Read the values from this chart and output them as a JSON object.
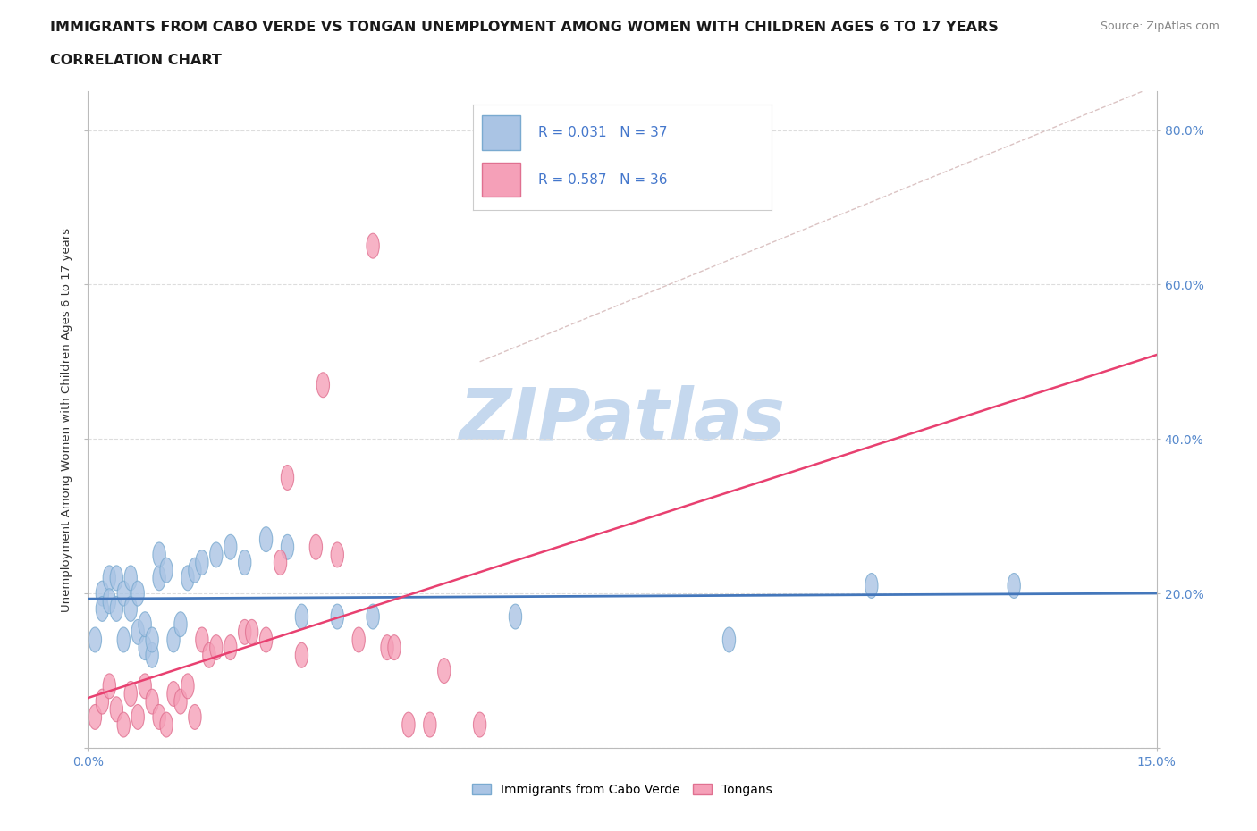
{
  "title_line1": "IMMIGRANTS FROM CABO VERDE VS TONGAN UNEMPLOYMENT AMONG WOMEN WITH CHILDREN AGES 6 TO 17 YEARS",
  "title_line2": "CORRELATION CHART",
  "source_text": "Source: ZipAtlas.com",
  "ylabel": "Unemployment Among Women with Children Ages 6 to 17 years",
  "xlim": [
    0.0,
    0.15
  ],
  "ylim": [
    0.0,
    0.85
  ],
  "x_ticks": [
    0.0,
    0.15
  ],
  "x_tick_labels": [
    "0.0%",
    "15.0%"
  ],
  "y_ticks": [
    0.0,
    0.2,
    0.4,
    0.6,
    0.8
  ],
  "y_tick_labels": [
    "",
    "20.0%",
    "40.0%",
    "60.0%",
    "80.0%"
  ],
  "cabo_verde_R": 0.031,
  "cabo_verde_N": 37,
  "tongan_R": 0.587,
  "tongan_N": 36,
  "cabo_verde_color": "#aac4e4",
  "tongan_color": "#f5a0b8",
  "cabo_verde_edge_color": "#7aaad0",
  "tongan_edge_color": "#e07090",
  "cabo_verde_line_color": "#4477bb",
  "tongan_line_color": "#e84070",
  "grid_color": "#dddddd",
  "background_color": "#ffffff",
  "watermark_color": "#c5d8ee",
  "watermark_text": "ZIPatlas",
  "cabo_verde_x": [
    0.001,
    0.002,
    0.002,
    0.003,
    0.003,
    0.004,
    0.004,
    0.005,
    0.005,
    0.006,
    0.006,
    0.007,
    0.007,
    0.008,
    0.008,
    0.009,
    0.009,
    0.01,
    0.01,
    0.011,
    0.012,
    0.013,
    0.014,
    0.015,
    0.016,
    0.018,
    0.02,
    0.022,
    0.025,
    0.028,
    0.03,
    0.035,
    0.04,
    0.06,
    0.09,
    0.11,
    0.13
  ],
  "cabo_verde_y": [
    0.14,
    0.2,
    0.18,
    0.22,
    0.19,
    0.18,
    0.22,
    0.14,
    0.2,
    0.22,
    0.18,
    0.15,
    0.2,
    0.13,
    0.16,
    0.12,
    0.14,
    0.22,
    0.25,
    0.23,
    0.14,
    0.16,
    0.22,
    0.23,
    0.24,
    0.25,
    0.26,
    0.24,
    0.27,
    0.26,
    0.17,
    0.17,
    0.17,
    0.17,
    0.14,
    0.21,
    0.21
  ],
  "tongan_x": [
    0.001,
    0.002,
    0.003,
    0.004,
    0.005,
    0.006,
    0.007,
    0.008,
    0.009,
    0.01,
    0.011,
    0.012,
    0.013,
    0.014,
    0.015,
    0.016,
    0.017,
    0.018,
    0.02,
    0.022,
    0.023,
    0.025,
    0.027,
    0.028,
    0.03,
    0.032,
    0.033,
    0.035,
    0.038,
    0.04,
    0.042,
    0.043,
    0.045,
    0.048,
    0.05,
    0.055
  ],
  "tongan_y": [
    0.04,
    0.06,
    0.08,
    0.05,
    0.03,
    0.07,
    0.04,
    0.08,
    0.06,
    0.04,
    0.03,
    0.07,
    0.06,
    0.08,
    0.04,
    0.14,
    0.12,
    0.13,
    0.13,
    0.15,
    0.15,
    0.14,
    0.24,
    0.35,
    0.12,
    0.26,
    0.47,
    0.25,
    0.14,
    0.65,
    0.13,
    0.13,
    0.03,
    0.03,
    0.1,
    0.03
  ]
}
